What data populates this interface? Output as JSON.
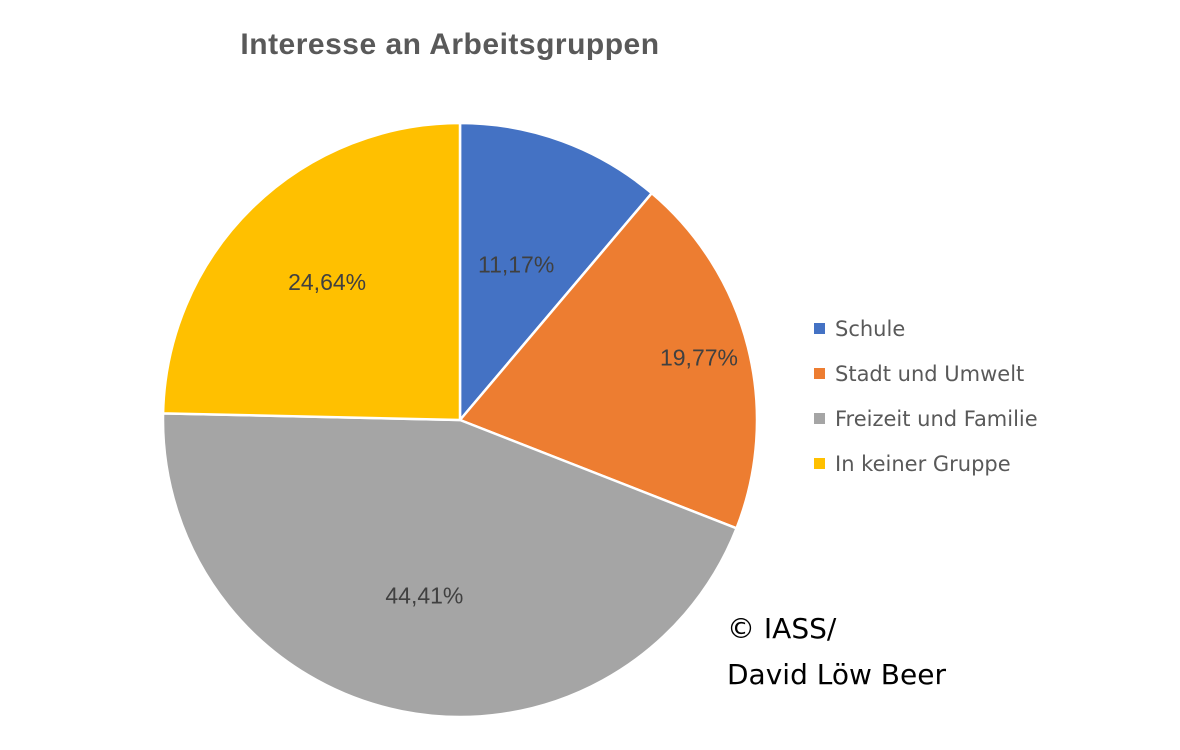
{
  "chart_data": {
    "type": "pie",
    "title": "Interesse an Arbeitsgruppen",
    "start_angle_deg": 0,
    "direction": "clockwise",
    "legend_position": "right",
    "slices": [
      {
        "label": "Schule",
        "value": 11.17,
        "data_label": "11,17%",
        "color": "#4472C4"
      },
      {
        "label": "Stadt und Umwelt",
        "value": 19.77,
        "data_label": "19,77%",
        "color": "#ED7D31"
      },
      {
        "label": "Freizeit und Familie",
        "value": 44.41,
        "data_label": "44,41%",
        "color": "#A5A5A5"
      },
      {
        "label": "In keiner Gruppe",
        "value": 24.64,
        "data_label": "24,64%",
        "color": "#FFC000"
      }
    ]
  },
  "copyright": {
    "line1": "© IASS/",
    "line2": "David Löw Beer"
  }
}
